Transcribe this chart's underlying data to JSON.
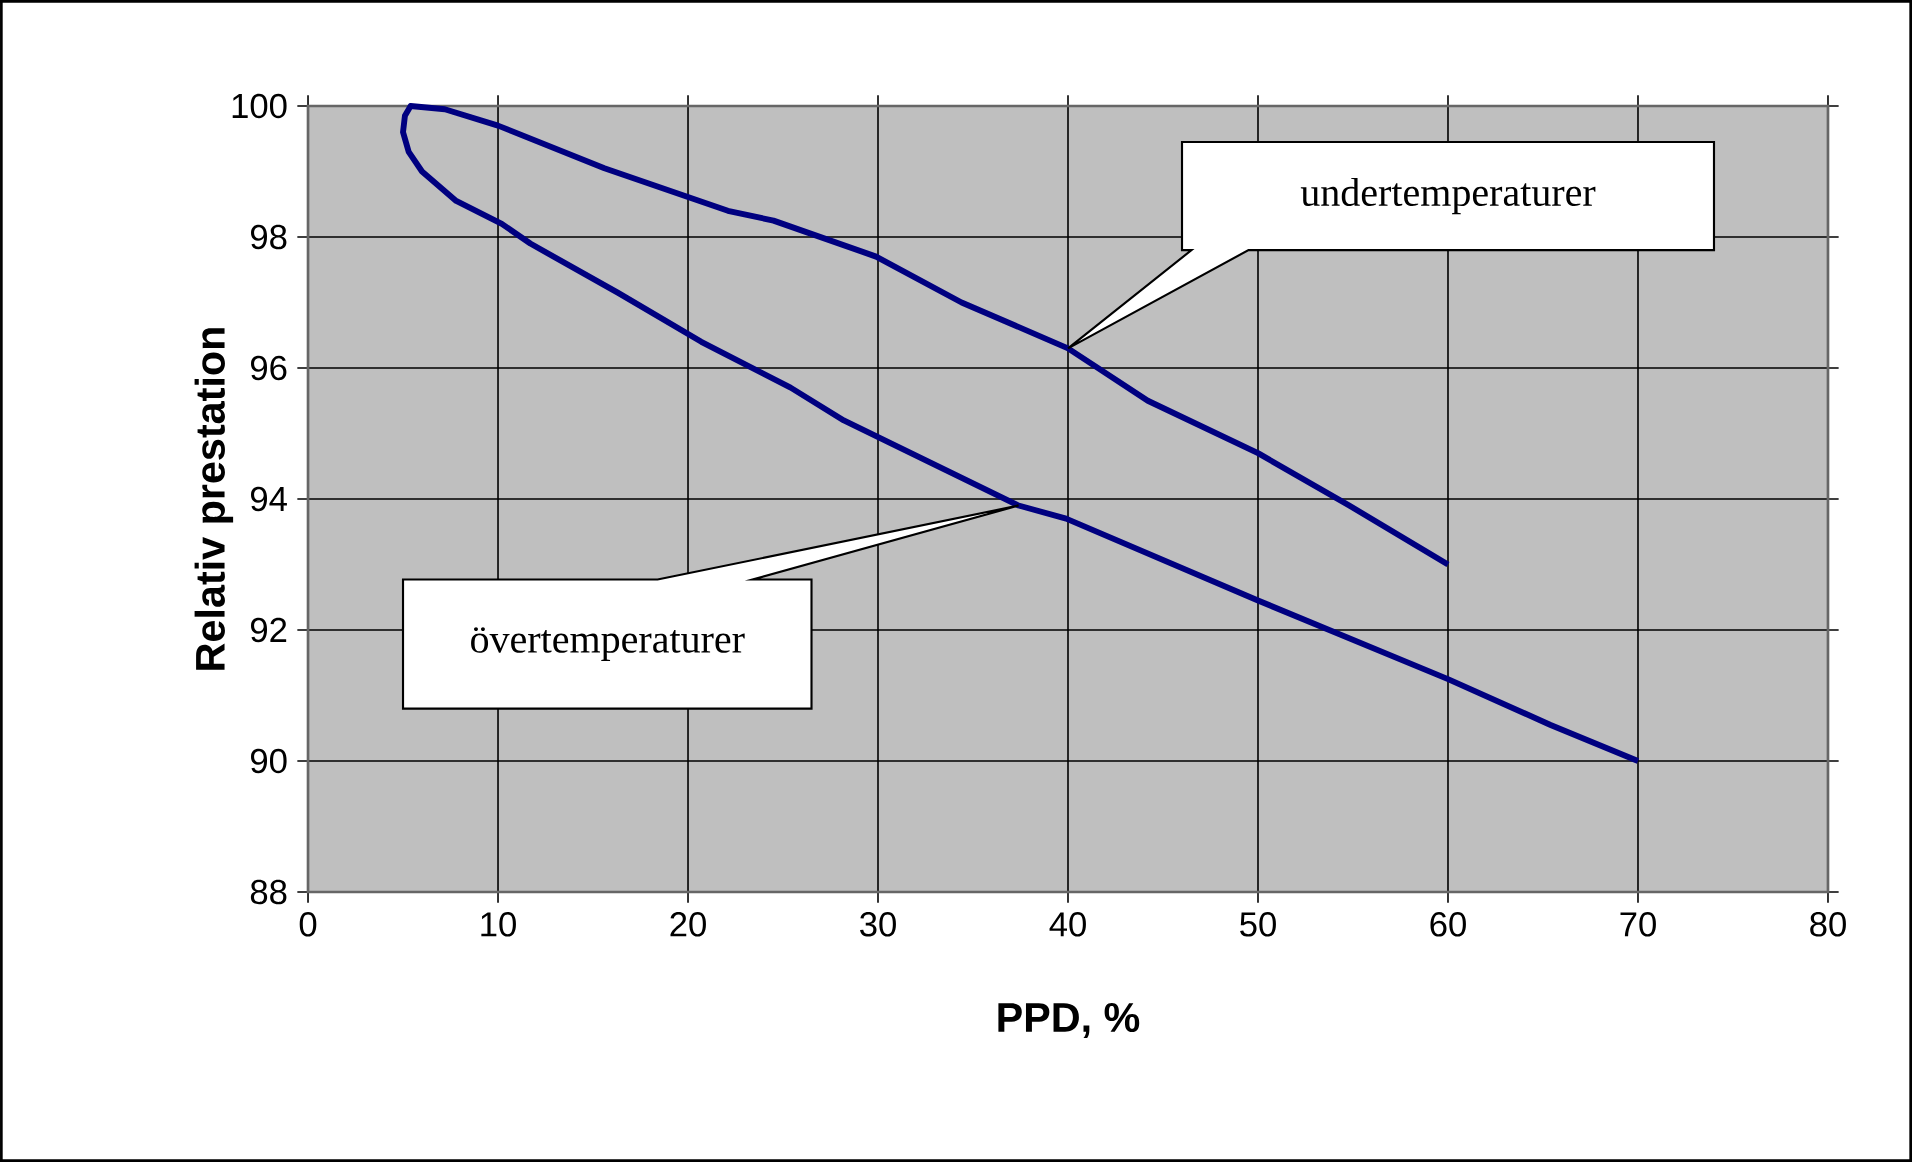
{
  "chart_data": {
    "type": "line",
    "xlabel": "PPD, %",
    "ylabel": "Relativ prestation",
    "series": [
      {
        "color": "#000080",
        "x": [
          60,
          54.8,
          50,
          44.2,
          40,
          34.4,
          29.9,
          24.5,
          22.1,
          15.6,
          10,
          7.2,
          5.4,
          5.1,
          5.0,
          5.3,
          6.0,
          7.8,
          10.2,
          11.7,
          16.3,
          20.7,
          25.4,
          28.2,
          37.4,
          39.9,
          50,
          60,
          65.4,
          70
        ],
        "values": [
          93,
          93.9,
          94.7,
          95.5,
          96.3,
          97.0,
          97.7,
          98.25,
          98.4,
          99.05,
          99.7,
          99.95,
          100,
          99.85,
          99.6,
          99.3,
          99.0,
          98.55,
          98.2,
          97.9,
          97.15,
          96.4,
          95.7,
          95.2,
          93.9,
          93.7,
          92.45,
          91.25,
          90.55,
          90
        ]
      }
    ],
    "xlim": [
      0,
      80
    ],
    "ylim": [
      88,
      100
    ],
    "xticks": [
      0,
      10,
      20,
      30,
      40,
      50,
      60,
      70,
      80
    ],
    "yticks": [
      88,
      90,
      92,
      94,
      96,
      98,
      100
    ],
    "grid": true,
    "annotations": [
      "undertemperaturer",
      "övertemperaturer"
    ]
  }
}
